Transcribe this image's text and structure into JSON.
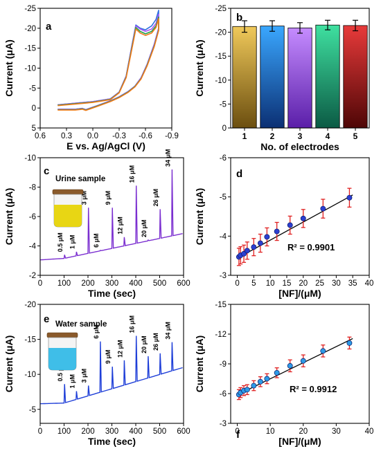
{
  "chart_data": [
    {
      "panel": "a",
      "type": "line",
      "xlabel": "E vs. Ag/AgCl (V)",
      "ylabel": "Current (μA)",
      "xlim": [
        0.6,
        -0.9
      ],
      "ylim": [
        5,
        -25
      ],
      "xticks": [
        "0.6",
        "0.3",
        "0.0",
        "-0.3",
        "-0.6",
        "-0.9"
      ],
      "yticks": [
        "5",
        "0",
        "-5",
        "-10",
        "-15",
        "-20",
        "-25"
      ],
      "series": [
        {
          "color": "#2f6fe0",
          "forward": [
            [
              0.4,
              -0.8
            ],
            [
              0.2,
              -1.2
            ],
            [
              0.0,
              -1.6
            ],
            [
              -0.2,
              -2.3
            ],
            [
              -0.3,
              -4.0
            ],
            [
              -0.38,
              -8.0
            ],
            [
              -0.44,
              -15.0
            ],
            [
              -0.49,
              -20.8
            ],
            [
              -0.54,
              -20.0
            ],
            [
              -0.6,
              -19.6
            ],
            [
              -0.67,
              -20.6
            ],
            [
              -0.72,
              -22.2
            ],
            [
              -0.75,
              -24.5
            ]
          ],
          "reverse": [
            [
              -0.75,
              -20.0
            ],
            [
              -0.7,
              -16.0
            ],
            [
              -0.62,
              -11.0
            ],
            [
              -0.55,
              -7.6
            ],
            [
              -0.48,
              -5.5
            ],
            [
              -0.4,
              -4.1
            ],
            [
              -0.3,
              -2.8
            ],
            [
              -0.2,
              -1.8
            ],
            [
              -0.05,
              -0.6
            ],
            [
              0.08,
              0.4
            ],
            [
              0.12,
              0.1
            ],
            [
              0.2,
              0.3
            ],
            [
              0.4,
              0.3
            ]
          ]
        },
        {
          "color": "#a855f7",
          "forward": [
            [
              0.4,
              -0.8
            ],
            [
              0.2,
              -1.2
            ],
            [
              0.0,
              -1.6
            ],
            [
              -0.2,
              -2.3
            ],
            [
              -0.3,
              -4.0
            ],
            [
              -0.38,
              -8.0
            ],
            [
              -0.44,
              -15.0
            ],
            [
              -0.49,
              -20.6
            ],
            [
              -0.54,
              -19.8
            ],
            [
              -0.6,
              -19.2
            ],
            [
              -0.67,
              -19.8
            ],
            [
              -0.72,
              -21.2
            ],
            [
              -0.75,
              -23.5
            ]
          ],
          "reverse": [
            [
              -0.75,
              -20.0
            ],
            [
              -0.7,
              -16.0
            ],
            [
              -0.62,
              -11.0
            ],
            [
              -0.55,
              -7.6
            ],
            [
              -0.48,
              -5.5
            ],
            [
              -0.4,
              -4.1
            ],
            [
              -0.3,
              -2.8
            ],
            [
              -0.2,
              -1.8
            ],
            [
              -0.05,
              -0.6
            ],
            [
              0.08,
              0.4
            ],
            [
              0.12,
              0.1
            ],
            [
              0.2,
              0.3
            ],
            [
              0.4,
              0.3
            ]
          ]
        },
        {
          "color": "#22a04b",
          "forward": [
            [
              0.4,
              -0.7
            ],
            [
              0.2,
              -1.1
            ],
            [
              0.0,
              -1.5
            ],
            [
              -0.2,
              -2.2
            ],
            [
              -0.3,
              -3.9
            ],
            [
              -0.38,
              -7.8
            ],
            [
              -0.44,
              -14.6
            ],
            [
              -0.49,
              -20.2
            ],
            [
              -0.54,
              -19.2
            ],
            [
              -0.6,
              -18.6
            ],
            [
              -0.67,
              -19.2
            ],
            [
              -0.72,
              -20.6
            ],
            [
              -0.75,
              -22.8
            ]
          ],
          "reverse": [
            [
              -0.75,
              -19.6
            ],
            [
              -0.7,
              -15.6
            ],
            [
              -0.62,
              -10.8
            ],
            [
              -0.55,
              -7.4
            ],
            [
              -0.48,
              -5.4
            ],
            [
              -0.4,
              -4.0
            ],
            [
              -0.3,
              -2.7
            ],
            [
              -0.2,
              -1.7
            ],
            [
              -0.05,
              -0.5
            ],
            [
              0.08,
              0.5
            ],
            [
              0.12,
              0.2
            ],
            [
              0.2,
              0.4
            ],
            [
              0.4,
              0.4
            ]
          ]
        },
        {
          "color": "#f07a1a",
          "forward": [
            [
              0.4,
              -0.6
            ],
            [
              0.2,
              -1.0
            ],
            [
              0.0,
              -1.4
            ],
            [
              -0.2,
              -2.1
            ],
            [
              -0.3,
              -3.8
            ],
            [
              -0.38,
              -7.6
            ],
            [
              -0.44,
              -14.2
            ],
            [
              -0.49,
              -19.8
            ],
            [
              -0.54,
              -18.8
            ],
            [
              -0.6,
              -18.2
            ],
            [
              -0.67,
              -18.8
            ],
            [
              -0.72,
              -20.2
            ],
            [
              -0.75,
              -22.4
            ]
          ],
          "reverse": [
            [
              -0.75,
              -19.4
            ],
            [
              -0.7,
              -15.4
            ],
            [
              -0.62,
              -10.6
            ],
            [
              -0.55,
              -7.3
            ],
            [
              -0.48,
              -5.3
            ],
            [
              -0.4,
              -3.9
            ],
            [
              -0.3,
              -2.6
            ],
            [
              -0.2,
              -1.6
            ],
            [
              -0.05,
              -0.4
            ],
            [
              0.08,
              0.6
            ],
            [
              0.12,
              0.3
            ],
            [
              0.2,
              0.5
            ],
            [
              0.4,
              0.5
            ]
          ]
        }
      ]
    },
    {
      "panel": "b",
      "type": "bar",
      "xlabel": "No. of electrodes",
      "ylabel": "Current (μA)",
      "ylim": [
        0,
        -25
      ],
      "yticks": [
        "0",
        "-5",
        "-10",
        "-15",
        "-20",
        "-25"
      ],
      "categories": [
        "1",
        "2",
        "3",
        "4",
        "5"
      ],
      "values": [
        -21.2,
        -21.3,
        -20.9,
        -21.5,
        -21.4
      ],
      "errors": [
        1.2,
        1.1,
        1.1,
        1.0,
        1.1
      ],
      "colors": [
        [
          "#f0c95a",
          "#6b4e0f"
        ],
        [
          "#3aa7ff",
          "#0b2f73"
        ],
        [
          "#c58cff",
          "#5a1ea8"
        ],
        [
          "#3fe0a0",
          "#0b5a44"
        ],
        [
          "#e83a3a",
          "#4e0606"
        ]
      ]
    },
    {
      "panel": "c",
      "type": "line",
      "xlabel": "Time (sec)",
      "ylabel": "Current (μA)",
      "xlim": [
        0,
        600
      ],
      "ylim": [
        -2,
        -10
      ],
      "xticks": [
        "0",
        "100",
        "200",
        "300",
        "400",
        "500",
        "600"
      ],
      "yticks": [
        "-2",
        "-4",
        "-6",
        "-8",
        "-10"
      ],
      "sample_label": "Urine sample",
      "vial_color": "#e6d200",
      "color": "#7b2fd0",
      "baseline": [
        [
          0,
          -3.05
        ],
        [
          100,
          -3.15
        ],
        [
          600,
          -4.85
        ]
      ],
      "spikes": [
        {
          "t": 100,
          "peak": -3.4,
          "label": "0.5 μM"
        },
        {
          "t": 150,
          "peak": -3.6,
          "label": "1 μM"
        },
        {
          "t": 200,
          "peak": -6.6,
          "label": "3 μM"
        },
        {
          "t": 250,
          "peak": -3.7,
          "label": "6 μM"
        },
        {
          "t": 300,
          "peak": -6.6,
          "label": "9 μM"
        },
        {
          "t": 350,
          "peak": -4.6,
          "label": "12 μM"
        },
        {
          "t": 400,
          "peak": -8.1,
          "label": "16 μM"
        },
        {
          "t": 450,
          "peak": -4.4,
          "label": "20 μM"
        },
        {
          "t": 500,
          "peak": -6.5,
          "label": "26 μM"
        },
        {
          "t": 550,
          "peak": -9.2,
          "label": "34 μM"
        }
      ]
    },
    {
      "panel": "d",
      "type": "scatter",
      "xlabel": "[NF]/(μM)",
      "ylabel": "Current (μA)",
      "xlim": [
        -2,
        40
      ],
      "ylim": [
        -3,
        -6
      ],
      "xticks": [
        "0",
        "5",
        "10",
        "15",
        "20",
        "25",
        "30",
        "35",
        "40"
      ],
      "yticks": [
        "-3",
        "-4",
        "-5",
        "-6"
      ],
      "annotation": "R² = 0.9901",
      "x": [
        0.5,
        1,
        2,
        3,
        5,
        7,
        9,
        12,
        16,
        20,
        26,
        34
      ],
      "y": [
        -3.47,
        -3.51,
        -3.55,
        -3.63,
        -3.72,
        -3.82,
        -3.98,
        -4.12,
        -4.28,
        -4.45,
        -4.7,
        -4.98
      ],
      "err": [
        0.22,
        0.22,
        0.22,
        0.22,
        0.22,
        0.23,
        0.23,
        0.23,
        0.23,
        0.23,
        0.24,
        0.24
      ],
      "fit": [
        [
          0.5,
          -3.46
        ],
        [
          35,
          -5.05
        ]
      ]
    },
    {
      "panel": "e",
      "type": "line",
      "xlabel": "Time (sec)",
      "ylabel": "Current (μA)",
      "xlim": [
        0,
        600
      ],
      "ylim": [
        -3,
        -20
      ],
      "xticks": [
        "0",
        "100",
        "200",
        "300",
        "400",
        "500",
        "600"
      ],
      "yticks": [
        "-5",
        "-10",
        "-15",
        "-20"
      ],
      "sample_label": "Water sample",
      "vial_color": "#2fb8e6",
      "color": "#1f3fd8",
      "baseline": [
        [
          0,
          -5.8
        ],
        [
          100,
          -5.9
        ],
        [
          600,
          -11.0
        ]
      ],
      "spikes": [
        {
          "t": 100,
          "peak": -8.6,
          "label": "0.5 μM"
        },
        {
          "t": 150,
          "peak": -7.6,
          "label": "1 μM"
        },
        {
          "t": 200,
          "peak": -8.4,
          "label": "3 μM"
        },
        {
          "t": 250,
          "peak": -14.7,
          "label": "6 μM"
        },
        {
          "t": 300,
          "peak": -11.1,
          "label": "9 μM"
        },
        {
          "t": 350,
          "peak": -12.0,
          "label": "12 μM"
        },
        {
          "t": 400,
          "peak": -15.5,
          "label": "16 μM"
        },
        {
          "t": 450,
          "peak": -12.6,
          "label": "20 μM"
        },
        {
          "t": 500,
          "peak": -13.0,
          "label": "26 μM"
        },
        {
          "t": 550,
          "peak": -14.6,
          "label": "34 μM"
        }
      ]
    },
    {
      "panel": "f",
      "type": "scatter",
      "xlabel": "[NF]/(μM)",
      "ylabel": "Current (μA)",
      "xlim": [
        -2,
        40
      ],
      "ylim": [
        -3,
        -15
      ],
      "xticks": [
        "0",
        "10",
        "20",
        "30",
        "40"
      ],
      "yticks": [
        "-3",
        "-6",
        "-9",
        "-12",
        "-15"
      ],
      "annotation": "R² = 0.9912",
      "x": [
        0.5,
        1,
        2,
        3,
        5,
        7,
        9,
        12,
        16,
        20,
        26,
        34
      ],
      "y": [
        -5.9,
        -6.1,
        -6.3,
        -6.4,
        -6.8,
        -7.2,
        -7.5,
        -8.1,
        -8.8,
        -9.3,
        -10.3,
        -11.1
      ],
      "err": [
        0.5,
        0.5,
        0.5,
        0.5,
        0.5,
        0.5,
        0.5,
        0.5,
        0.6,
        0.6,
        0.6,
        0.6
      ],
      "fit": [
        [
          0.5,
          -5.95
        ],
        [
          35,
          -11.55
        ]
      ]
    }
  ]
}
